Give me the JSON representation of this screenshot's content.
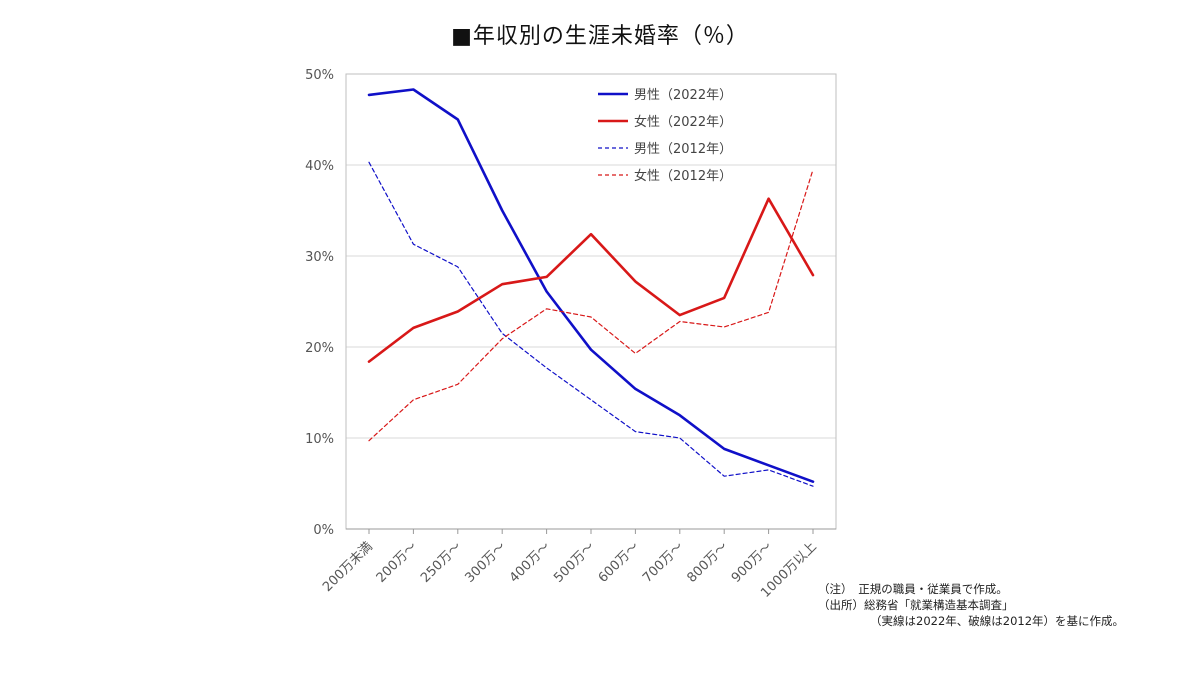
{
  "chart_data": {
    "type": "line",
    "title": "■年収別の生涯未婚率（％）",
    "xlabel": "",
    "ylabel": "",
    "categories": [
      "200万未満",
      "200万～",
      "250万～",
      "300万～",
      "400万～",
      "500万～",
      "600万～",
      "700万～",
      "800万～",
      "900万～",
      "1000万以上"
    ],
    "ylim": [
      0,
      50
    ],
    "yticks": [
      0,
      10,
      20,
      30,
      40,
      50
    ],
    "ytick_labels": [
      "0%",
      "10%",
      "20%",
      "30%",
      "40%",
      "50%"
    ],
    "grid": "horizontal",
    "legend_position": "top-right",
    "series": [
      {
        "name": "男性（2022年）",
        "color": "#1010c8",
        "style": "solid",
        "values": [
          47.7,
          48.3,
          45.0,
          35.0,
          26.1,
          19.7,
          15.4,
          12.5,
          8.8,
          7.0,
          5.2
        ]
      },
      {
        "name": "女性（2022年）",
        "color": "#d81818",
        "style": "solid",
        "values": [
          18.4,
          22.1,
          23.9,
          26.9,
          27.7,
          32.4,
          27.2,
          23.5,
          25.4,
          36.3,
          27.9
        ]
      },
      {
        "name": "男性（2012年）",
        "color": "#1010c8",
        "style": "dashed",
        "values": [
          40.3,
          31.3,
          28.8,
          21.5,
          17.7,
          14.2,
          10.7,
          10.0,
          5.8,
          6.5,
          4.7
        ]
      },
      {
        "name": "女性（2012年）",
        "color": "#d81818",
        "style": "dashed",
        "values": [
          9.7,
          14.2,
          15.9,
          20.9,
          24.2,
          23.3,
          19.3,
          22.8,
          22.2,
          23.8,
          39.5
        ]
      }
    ]
  },
  "notes": [
    "（注）　正規の職員・従業員で作成。",
    "（出所）総務省「就業構造基本調査」",
    "（実線は2022年、破線は2012年）を基に作成。"
  ]
}
